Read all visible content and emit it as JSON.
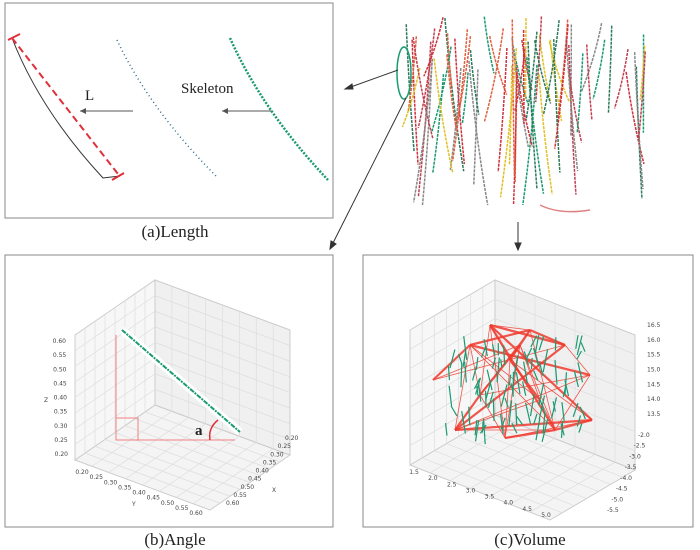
{
  "panel_a": {
    "caption": "(a)Length",
    "skeleton_label": "Skeleton",
    "length_label": "L"
  },
  "panel_b": {
    "caption": "(b)Angle",
    "angle_label": "a",
    "z_ticks": [
      "0.20",
      "0.25",
      "0.30",
      "0.35",
      "0.40",
      "0.45",
      "0.50",
      "0.55",
      "0.60"
    ],
    "y_ticks": [
      "0.20",
      "0.25",
      "0.30",
      "0.35",
      "0.40",
      "0.45",
      "0.50",
      "0.55",
      "0.60"
    ],
    "x_ticks": [
      "0.20",
      "0.25",
      "0.30",
      "0.35",
      "0.40",
      "0.45",
      "0.50",
      "0.55",
      "0.60"
    ],
    "z_label": "Z",
    "y_label": "Y",
    "x_label": "X"
  },
  "panel_c": {
    "caption": "(c)Volume",
    "z_ticks": [
      "13.5",
      "14.0",
      "14.5",
      "15.0",
      "15.5",
      "16.0",
      "16.5"
    ],
    "x_ticks": [
      "1.5",
      "2.0",
      "2.5",
      "3.0",
      "3.5",
      "4.0",
      "4.5",
      "5.0"
    ],
    "y_ticks": [
      "-2.0",
      "-2.5",
      "-3.0",
      "-3.5",
      "-4.0",
      "-4.5",
      "-5.0",
      "-5.5"
    ]
  },
  "colors": {
    "skeleton_green": "#1a9a72",
    "length_red": "#e0303a",
    "hull_red": "#f03a2e",
    "frame": "#888888"
  }
}
